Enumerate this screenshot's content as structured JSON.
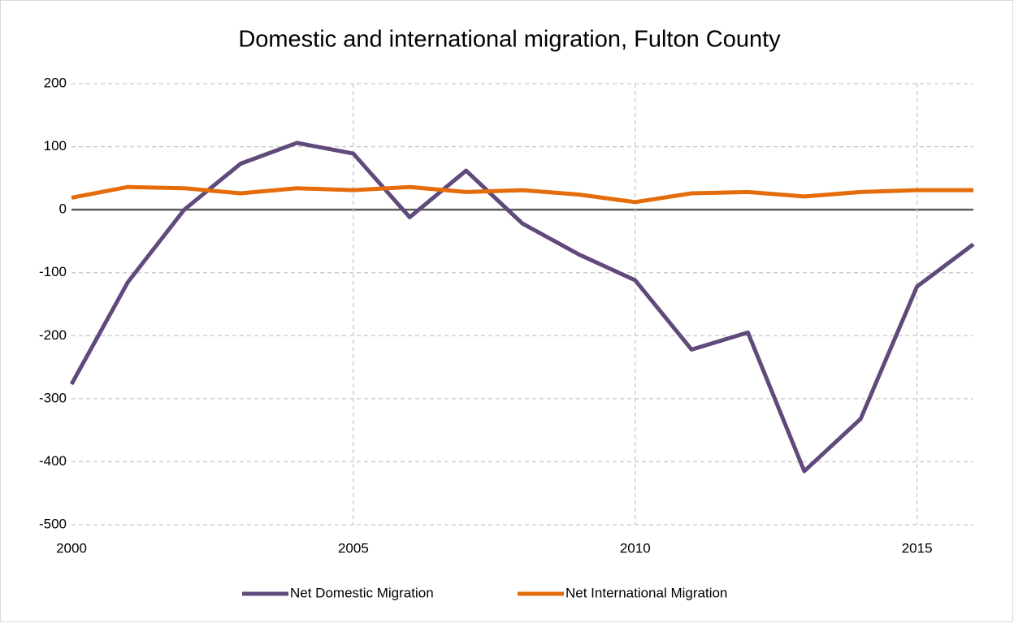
{
  "chart_data": {
    "type": "line",
    "title": "Domestic and international migration, Fulton County",
    "x": [
      2000,
      2001,
      2002,
      2003,
      2004,
      2005,
      2006,
      2007,
      2008,
      2009,
      2010,
      2011,
      2012,
      2013,
      2014,
      2015,
      2016
    ],
    "series": [
      {
        "name": "Net Domestic Migration",
        "color": "#604a7b",
        "values": [
          -277,
          -115,
          0,
          73,
          106,
          89,
          -12,
          62,
          -22,
          -71,
          -112,
          -222,
          -195,
          -415,
          -332,
          -122,
          -55
        ]
      },
      {
        "name": "Net International Migration",
        "color": "#e46c0a",
        "values": [
          19,
          36,
          34,
          26,
          34,
          31,
          36,
          28,
          31,
          24,
          12,
          26,
          28,
          21,
          28,
          31,
          31
        ]
      }
    ],
    "xlim": [
      2000,
      2016
    ],
    "xticks": [
      2000,
      2005,
      2010,
      2015
    ],
    "ylim": [
      -500,
      200
    ],
    "yticks": [
      -500,
      -400,
      -300,
      -200,
      -100,
      0,
      100,
      200
    ],
    "grid": true,
    "legend": "bottom"
  }
}
